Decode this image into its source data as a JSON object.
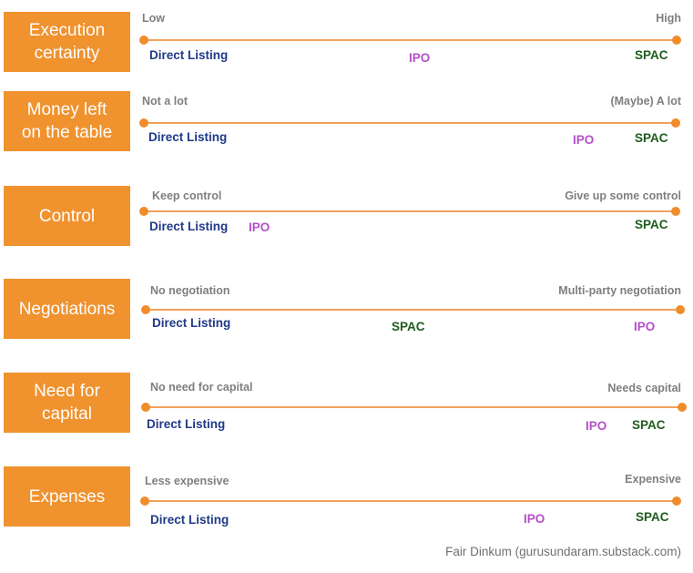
{
  "colors": {
    "box": "#f0922e",
    "line": "#f2a15c",
    "direct_listing": "#1f3a87",
    "ipo": "#b54fc8",
    "spac": "#1e5c1e",
    "end_label": "#7f7f7f"
  },
  "rows": [
    {
      "title": "Execution\ncertainty",
      "low": "Low",
      "high": "High",
      "markers": [
        {
          "label": "Direct Listing",
          "type": "direct_listing"
        },
        {
          "label": "IPO",
          "type": "ipo"
        },
        {
          "label": "SPAC",
          "type": "spac"
        }
      ]
    },
    {
      "title": "Money left\non the table",
      "low": "Not a lot",
      "high": "(Maybe) A lot",
      "markers": [
        {
          "label": "Direct Listing",
          "type": "direct_listing"
        },
        {
          "label": "IPO",
          "type": "ipo"
        },
        {
          "label": "SPAC",
          "type": "spac"
        }
      ]
    },
    {
      "title": "Control",
      "low": "Keep control",
      "high": "Give up some control",
      "markers": [
        {
          "label": "Direct Listing",
          "type": "direct_listing"
        },
        {
          "label": "IPO",
          "type": "ipo"
        },
        {
          "label": "SPAC",
          "type": "spac"
        }
      ]
    },
    {
      "title": "Negotiations",
      "low": "No negotiation",
      "high": "Multi-party negotiation",
      "markers": [
        {
          "label": "Direct Listing",
          "type": "direct_listing"
        },
        {
          "label": "SPAC",
          "type": "spac"
        },
        {
          "label": "IPO",
          "type": "ipo"
        }
      ]
    },
    {
      "title": "Need for\ncapital",
      "low": "No need for capital",
      "high": "Needs capital",
      "markers": [
        {
          "label": "Direct Listing",
          "type": "direct_listing"
        },
        {
          "label": "IPO",
          "type": "ipo"
        },
        {
          "label": "SPAC",
          "type": "spac"
        }
      ]
    },
    {
      "title": "Expenses",
      "low": "Less expensive",
      "high": "Expensive",
      "markers": [
        {
          "label": "Direct Listing",
          "type": "direct_listing"
        },
        {
          "label": "IPO",
          "type": "ipo"
        },
        {
          "label": "SPAC",
          "type": "spac"
        }
      ]
    }
  ],
  "footer": "Fair Dinkum (gurusundaram.substack.com)"
}
